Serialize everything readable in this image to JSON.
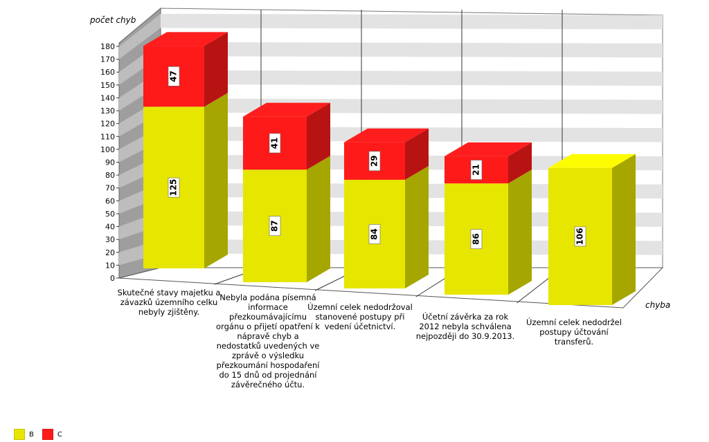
{
  "chart_data": {
    "type": "bar",
    "stacked": true,
    "three_d": true,
    "ylabel": "počet chyb",
    "xlabel": "chyba",
    "ylim": [
      0,
      180
    ],
    "ytick_step": 10,
    "grid": true,
    "legend_position": "bottom-left",
    "categories": [
      "Skutečné stavy majetku a závazků územního celku nebyly zjištěny.",
      "Nebyla podána písemná informace přezkoumávajícímu orgánu o přijetí opatření k nápravě chyb a nedostatků uvedených ve zprávě o výsledku přezkoumání hospodaření do 15 dnů od projednání závěrečného účtu.",
      "Územní celek nedodržoval stanovené postupy při vedení účetnictví.",
      "Účetní závěrka za rok 2012 nebyla schválena nejpozději do 30.9.2013.",
      "Územní celek nedodržel postupy účtování transferů."
    ],
    "category_lines": [
      [
        "Skutečné stavy majetku a",
        "závazků  územního celku",
        "nebyly zjištěny."
      ],
      [
        "Nebyla podána písemná",
        "informace",
        "přezkoumávajícímu",
        "orgánu o přijetí opatření k",
        "nápravě chyb a",
        "nedostatků uvedených ve",
        "zprávě o výsledku",
        "přezkoumání hospodaření",
        "do 15 dnů od projednání",
        "závěrečného účtu."
      ],
      [
        "Územní celek nedodržoval",
        "stanovené postupy při",
        "vedení účetnictví."
      ],
      [
        "Účetní závěrka za rok",
        "2012 nebyla schválena",
        "nejpozději do 30.9.2013."
      ],
      [
        "Územní celek nedodržel",
        "postupy účtování",
        "transferů."
      ]
    ],
    "series": [
      {
        "name": "B",
        "values": [
          125,
          87,
          84,
          86,
          106
        ],
        "color": "#e6e600"
      },
      {
        "name": "C",
        "values": [
          47,
          41,
          29,
          21,
          0
        ],
        "color": "#ff1a1a"
      }
    ]
  },
  "legend": [
    {
      "name": "B",
      "color": "#e6e600"
    },
    {
      "name": "C",
      "color": "#ff1a1a"
    }
  ]
}
